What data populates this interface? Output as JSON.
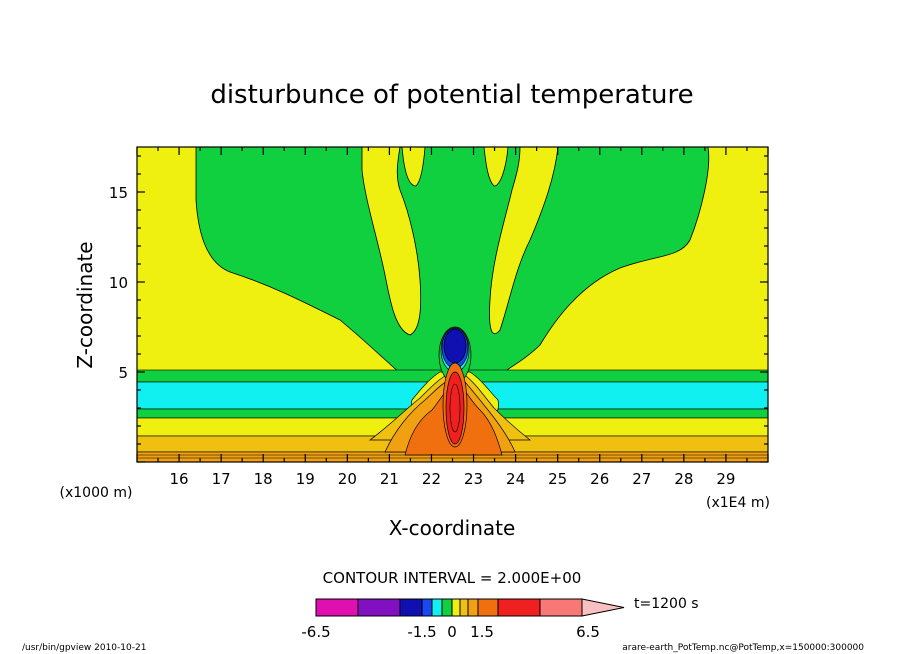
{
  "chart_data": {
    "type": "heatmap",
    "title": "disturbunce of potential temperature",
    "xlabel": "X-coordinate",
    "ylabel": "Z-coordinate",
    "x_unit_label": "(x1E4 m)",
    "y_unit_label": "(x1000 m)",
    "xlim": [
      15.0,
      30.0
    ],
    "ylim": [
      0.0,
      17.5
    ],
    "x_ticks": [
      "16",
      "17",
      "18",
      "19",
      "20",
      "21",
      "22",
      "23",
      "24",
      "25",
      "26",
      "27",
      "28",
      "29"
    ],
    "y_ticks": [
      "5",
      "10",
      "15"
    ],
    "contour_interval_text": "CONTOUR INTERVAL = 2.000E+00",
    "time_label": "t=1200 s",
    "colorbar": {
      "colors": [
        "#e010b0",
        "#8010c0",
        "#1010b0",
        "#1848f0",
        "#10f0f0",
        "#10d040",
        "#f0f010",
        "#f0c010",
        "#f0a010",
        "#f07010",
        "#f02020",
        "#f87878",
        "#f8c0c0"
      ],
      "labels": [
        "-6.5",
        "-1.5",
        "0",
        "1.5",
        "6.5"
      ]
    },
    "footer_left": "/usr/bin/gpview   2010-10-21",
    "footer_right": "arare-earth_PotTemp.nc@PotTemp,x=150000:300000",
    "colors": {
      "background_field": "#f0f010",
      "green": "#10d040",
      "cyan": "#10f0f0",
      "blue": "#1848f0",
      "dark_blue": "#1010b0",
      "orange": "#f0a010",
      "dark_orange": "#f07010",
      "red": "#f02020",
      "light_yellow": "#f0c010"
    }
  }
}
